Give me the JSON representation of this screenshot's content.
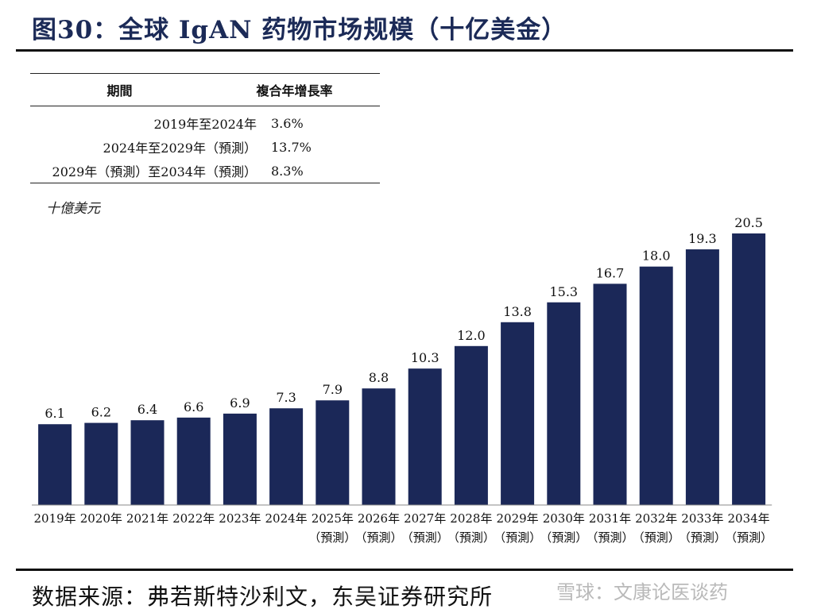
{
  "header": {
    "title": "图30：全球 IgAN 药物市场规模（十亿美金）"
  },
  "growth_table": {
    "col_period": "期間",
    "col_rate": "複合年增長率",
    "rows": [
      {
        "period": "2019年至2024年",
        "rate": "3.6%"
      },
      {
        "period": "2024年至2029年（預測）",
        "rate": "13.7%"
      },
      {
        "period": "2029年（預測）至2034年（預測）",
        "rate": "8.3%"
      }
    ]
  },
  "unit_label": "十億美元",
  "chart_data": {
    "type": "bar",
    "categories": [
      "2019年",
      "2020年",
      "2021年",
      "2022年",
      "2023年",
      "2024年",
      "2025年",
      "2026年",
      "2027年",
      "2028年",
      "2029年",
      "2030年",
      "2031年",
      "2032年",
      "2033年",
      "2034年"
    ],
    "category_sublabels": [
      "",
      "",
      "",
      "",
      "",
      "",
      "（預測）",
      "（預測）",
      "（預測）",
      "（預測）",
      "（預測）",
      "（預測）",
      "（預測）",
      "（預測）",
      "（預測）",
      "（預測）"
    ],
    "values": [
      6.1,
      6.2,
      6.4,
      6.6,
      6.9,
      7.3,
      7.9,
      8.8,
      10.3,
      12.0,
      13.8,
      15.3,
      16.7,
      18.0,
      19.3,
      20.5
    ],
    "ylabel": "十億美元",
    "ylim": [
      0,
      20.5
    ],
    "grid": false,
    "bar_color": "#1b2858"
  },
  "source": "数据来源：弗若斯特沙利文，东吴证券研究所",
  "watermark": "雪球：文康论医谈药"
}
